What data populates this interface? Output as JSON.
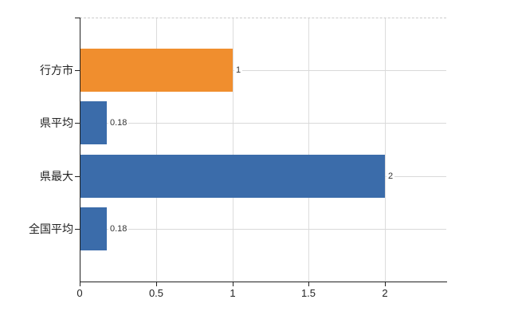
{
  "chart_data": {
    "type": "bar",
    "orientation": "horizontal",
    "title": "",
    "categories": [
      "行方市",
      "県平均",
      "県最大",
      "全国平均"
    ],
    "values": [
      1,
      0.18,
      2,
      0.18
    ],
    "data_labels": [
      "1",
      "0.18",
      "2",
      "0.18"
    ],
    "bar_colors": [
      "#f08e2e",
      "#3b6caa",
      "#3b6caa",
      "#3b6caa"
    ],
    "x_tick_labels": [
      "0",
      "0.5",
      "1",
      "1.5",
      "2"
    ],
    "x_tick_values": [
      0,
      0.5,
      1,
      1.5,
      2
    ],
    "xlim": [
      0,
      2.4
    ],
    "grid": true,
    "legend": false
  },
  "colors": {
    "bar_orange": "#f08e2e",
    "bar_blue": "#3b6caa",
    "axis": "#222222",
    "grid_line": "#dcdcdc",
    "plot_top_border": "#cccccc",
    "text": "#222222",
    "background": "#ffffff"
  }
}
